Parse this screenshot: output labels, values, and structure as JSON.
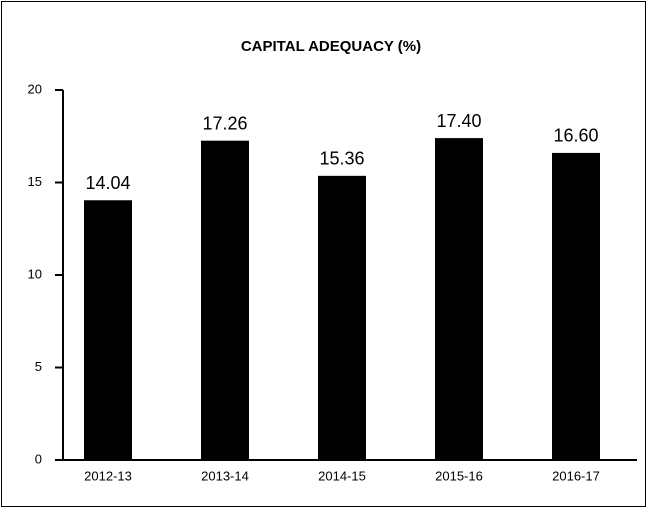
{
  "chart_data": {
    "type": "bar",
    "title": "CAPITAL ADEQUACY (%)",
    "categories": [
      "2012-13",
      "2013-14",
      "2014-15",
      "2015-16",
      "2016-17"
    ],
    "values": [
      14.04,
      17.26,
      15.36,
      17.4,
      16.6
    ],
    "value_labels": [
      "14.04",
      "17.26",
      "15.36",
      "17.40",
      "16.60"
    ],
    "color": "#000000",
    "ylim": [
      0,
      20
    ],
    "yticks": [
      0,
      5,
      10,
      15,
      20
    ],
    "grid": false
  }
}
